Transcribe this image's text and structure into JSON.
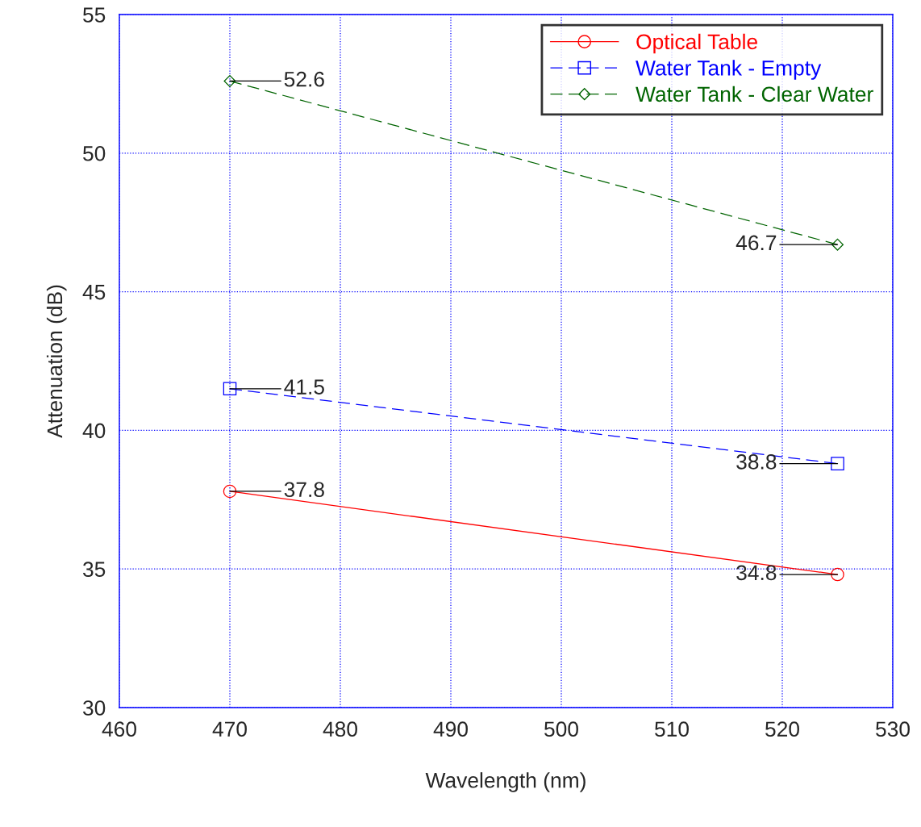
{
  "chart_data": {
    "type": "line",
    "xlabel": "Wavelength (nm)",
    "ylabel": "Attenuation (dB)",
    "x": [
      470,
      525
    ],
    "series": [
      {
        "name": "Optical Table",
        "color": "#ff0000",
        "values": [
          37.8,
          34.8
        ],
        "marker": "circle",
        "line_style": "solid"
      },
      {
        "name": "Water Tank - Empty",
        "color": "#0000ff",
        "values": [
          41.5,
          38.8
        ],
        "marker": "square",
        "line_style": "dashed"
      },
      {
        "name": "Water Tank - Clear Water",
        "color": "#006400",
        "values": [
          52.6,
          46.7
        ],
        "marker": "diamond",
        "line_style": "dashed"
      }
    ],
    "xlim": [
      460,
      530
    ],
    "xticks": [
      460,
      470,
      480,
      490,
      500,
      510,
      520,
      530
    ],
    "ylim": [
      30,
      55
    ],
    "yticks": [
      30,
      35,
      40,
      45,
      50,
      55
    ],
    "grid": true,
    "legend": "top right",
    "data_labels": true
  }
}
